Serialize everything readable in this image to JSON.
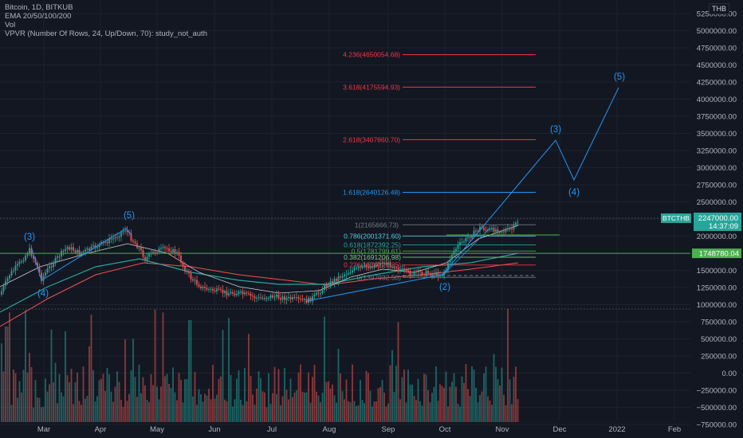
{
  "legend": {
    "symbol": "Bitcoin, 1D, BITKUB",
    "ema": "EMA 20/50/100/200",
    "vol": "Vol",
    "vpvr": "VPVR (Number Of Rows, 24, Up/Down, 70): study_not_auth"
  },
  "currency_button": "THB",
  "colors": {
    "background": "#131722",
    "up": "#26a69a",
    "down": "#ef5350",
    "ema_fast": "#ffffff",
    "ema_mid": "#26a69a",
    "ema_slow": "#ef5350",
    "wave": "#2196f3",
    "fib_ext_red": "#f23645",
    "green_line": "#4caf50"
  },
  "price_tags": {
    "current_symbol": "BTCTHB",
    "current_price": "2247000.00",
    "countdown": "14:37:09",
    "green_line_price": "1748780.04"
  },
  "chart_data": {
    "type": "candlestick",
    "y_axis_ticks": [
      "5250000.00",
      "5000000.00",
      "4750000.00",
      "4500000.00",
      "4250000.00",
      "4000000.00",
      "3750000.00",
      "3500000.00",
      "3250000.00",
      "3000000.00",
      "2750000.00",
      "2500000.00",
      "2250000.00",
      "2000000.00",
      "1750000.00",
      "1500000.00",
      "1250000.00",
      "1000000.00",
      "750000.00",
      "500000.00",
      "250000.00",
      "0.00",
      "−250000.00",
      "−500000.00",
      "−750000.00"
    ],
    "x_axis_ticks": [
      "Mar",
      "Apr",
      "May",
      "Jun",
      "Jul",
      "Aug",
      "Sep",
      "Oct",
      "Nov",
      "Dec",
      "2022",
      "Feb"
    ],
    "ylim": [
      -830000,
      5400000
    ],
    "last_price": 2247000,
    "green_line_value": 1748780.04,
    "fib_extensions": [
      {
        "label": "4.236(4650054.68)",
        "value": 4650054.68,
        "color": "#f23645"
      },
      {
        "label": "3.618(4175594.93)",
        "value": 4175594.93,
        "color": "#f23645"
      },
      {
        "label": "2.618(3407860.70)",
        "value": 3407860.7,
        "color": "#f23645"
      },
      {
        "label": "1.618(2640126.48)",
        "value": 2640126.48,
        "color": "#2196f3"
      }
    ],
    "fib_retracements": [
      {
        "label": "1(2165666.73)",
        "value": 2165666.73,
        "color": "#787b86"
      },
      {
        "label": "0.786(2001371.60)",
        "value": 2001371.6,
        "color": "#4dd0e1"
      },
      {
        "label": "0.618(1872392.25)",
        "value": 1872392.25,
        "color": "#26a69a"
      },
      {
        "label": "0.5(1781799.61)",
        "value": 1781799.61,
        "color": "#4caf50"
      },
      {
        "label": "0.382(1691206.98)",
        "value": 1691206.98,
        "color": "#81c784"
      },
      {
        "label": "0.236(1579121.35)",
        "value": 1579121.35,
        "color": "#f23645"
      },
      {
        "label": "0(1397932.50)",
        "value": 1397932.5,
        "color": "#787b86"
      }
    ],
    "wave_labels": [
      "(3)",
      "(4)",
      "(5)",
      "(3)",
      "(4)",
      "(5)",
      "(2)"
    ]
  }
}
